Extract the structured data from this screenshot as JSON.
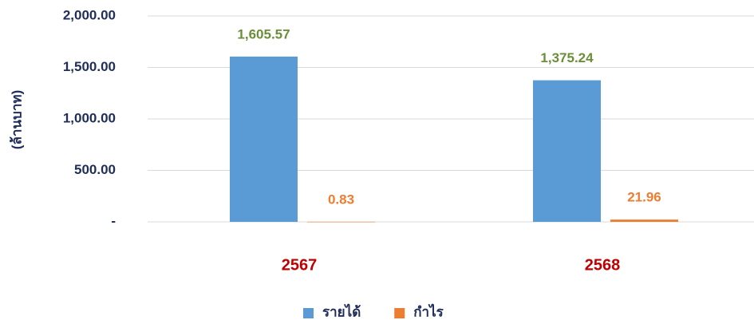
{
  "chart_data": {
    "type": "bar",
    "y_label": "(ล้านบาท)",
    "categories": [
      "2567",
      "2568"
    ],
    "series": [
      {
        "name": "รายได้",
        "color": "#5b9bd5",
        "label_color": "#6b8e3a",
        "values": [
          1605.57,
          1375.24
        ],
        "value_labels": [
          "1,605.57",
          "1,375.24"
        ]
      },
      {
        "name": "กำไร",
        "color": "#ed7d31",
        "label_color": "#ed7d31",
        "values": [
          0.83,
          21.96
        ],
        "value_labels": [
          "0.83",
          "21.96"
        ]
      }
    ],
    "ylim": [
      0,
      2000
    ],
    "yticks": [
      {
        "value": 0,
        "label": "-"
      },
      {
        "value": 500,
        "label": "500.00"
      },
      {
        "value": 1000,
        "label": "1,000.00"
      },
      {
        "value": 1500,
        "label": "1,500.00"
      },
      {
        "value": 2000,
        "label": "2,000.00"
      }
    ],
    "grid": true,
    "legend": "bottom"
  }
}
